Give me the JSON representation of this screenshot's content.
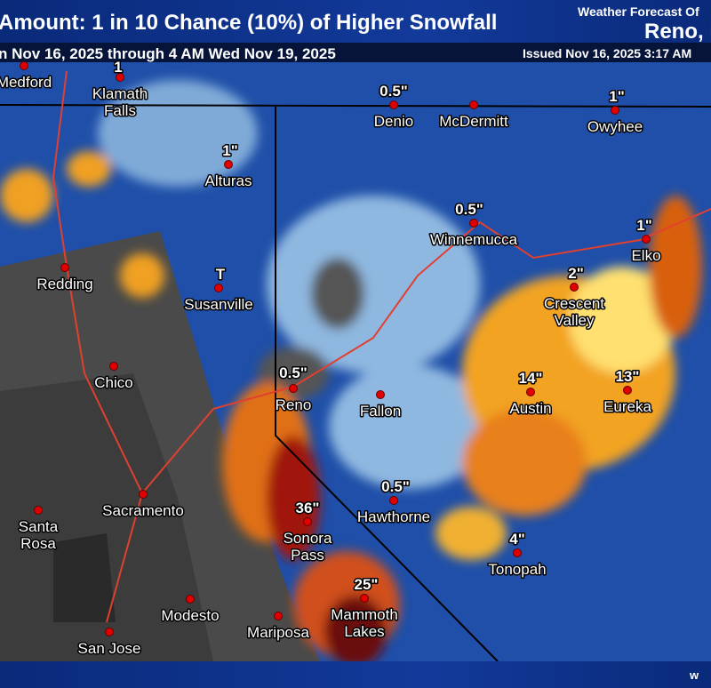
{
  "header": {
    "title": "Amount: 1 in 10 Chance (10%) of Higher Snowfall",
    "office": "Weather Forecast Of",
    "office_location": "Reno, N",
    "period": "n Nov 16, 2025 through 4 AM Wed Nov 19, 2025",
    "issued": "Issued Nov 16, 2025 3:17 AM"
  },
  "cities": [
    {
      "name": [
        "Medford"
      ]
    },
    {
      "name": [
        "Klamath",
        "Falls"
      ],
      "amount": "1"
    },
    {
      "name": [
        "Alturas"
      ],
      "amount": "1\""
    },
    {
      "name": [
        "Redding"
      ]
    },
    {
      "name": [
        "Susanville"
      ],
      "amount": "T"
    },
    {
      "name": [
        "Chico"
      ]
    },
    {
      "name": [
        "Reno"
      ],
      "amount": "0.5\""
    },
    {
      "name": [
        "Fallon"
      ]
    },
    {
      "name": [
        "Denio"
      ],
      "amount": "0.5\""
    },
    {
      "name": [
        "McDermitt"
      ]
    },
    {
      "name": [
        "Owyhee"
      ],
      "amount": "1\""
    },
    {
      "name": [
        "Winnemucca"
      ],
      "amount": "0.5\""
    },
    {
      "name": [
        "Elko"
      ],
      "amount": "1\""
    },
    {
      "name": [
        "Crescent",
        "Valley"
      ],
      "amount": "2\""
    },
    {
      "name": [
        "Austin"
      ],
      "amount": "14\""
    },
    {
      "name": [
        "Eureka"
      ],
      "amount": "13\""
    },
    {
      "name": [
        "Hawthorne"
      ],
      "amount": "0.5\""
    },
    {
      "name": [
        "Sonora",
        "Pass"
      ],
      "amount": "36\""
    },
    {
      "name": [
        "Tonopah"
      ],
      "amount": "4\""
    },
    {
      "name": [
        "Mammoth",
        "Lakes"
      ],
      "amount": "25\""
    },
    {
      "name": [
        "Sacramento"
      ]
    },
    {
      "name": [
        "Santa",
        "Rosa"
      ]
    },
    {
      "name": [
        "Modesto"
      ]
    },
    {
      "name": [
        "Mariposa"
      ]
    },
    {
      "name": [
        "San Jose"
      ]
    }
  ],
  "footer": {
    "text": "w"
  }
}
